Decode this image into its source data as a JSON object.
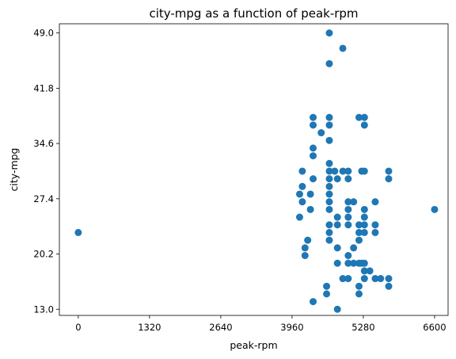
{
  "chart_data": {
    "type": "scatter",
    "title": "city-mpg as a function of peak-rpm",
    "xlabel": "peak-rpm",
    "ylabel": "city-mpg",
    "xlim": [
      -350,
      6850
    ],
    "ylim": [
      12.2,
      50.2
    ],
    "x_ticks": [
      0,
      1320,
      2640,
      3960,
      5280,
      6600
    ],
    "x_tick_labels": [
      "0",
      "1320",
      "2640",
      "3960",
      "5280",
      "6600"
    ],
    "y_ticks": [
      13.0,
      20.2,
      27.4,
      34.6,
      41.8,
      49.0
    ],
    "y_tick_labels": [
      "13.0",
      "20.2",
      "27.4",
      "34.6",
      "41.8",
      "49.0"
    ],
    "grid": false,
    "marker_color": "#1f77b4",
    "points": [
      {
        "x": 0,
        "y": 23
      },
      {
        "x": 4150,
        "y": 31
      },
      {
        "x": 4100,
        "y": 28
      },
      {
        "x": 4150,
        "y": 29
      },
      {
        "x": 4150,
        "y": 27
      },
      {
        "x": 4100,
        "y": 25
      },
      {
        "x": 4200,
        "y": 21
      },
      {
        "x": 4200,
        "y": 20
      },
      {
        "x": 4250,
        "y": 22
      },
      {
        "x": 4300,
        "y": 28
      },
      {
        "x": 4300,
        "y": 26
      },
      {
        "x": 4350,
        "y": 38
      },
      {
        "x": 4350,
        "y": 37
      },
      {
        "x": 4350,
        "y": 34
      },
      {
        "x": 4350,
        "y": 33
      },
      {
        "x": 4350,
        "y": 30
      },
      {
        "x": 4350,
        "y": 14
      },
      {
        "x": 4500,
        "y": 36
      },
      {
        "x": 4600,
        "y": 16
      },
      {
        "x": 4600,
        "y": 15
      },
      {
        "x": 4650,
        "y": 49
      },
      {
        "x": 4650,
        "y": 45
      },
      {
        "x": 4650,
        "y": 38
      },
      {
        "x": 4650,
        "y": 37
      },
      {
        "x": 4650,
        "y": 35
      },
      {
        "x": 4650,
        "y": 32
      },
      {
        "x": 4650,
        "y": 31
      },
      {
        "x": 4650,
        "y": 30
      },
      {
        "x": 4650,
        "y": 29
      },
      {
        "x": 4650,
        "y": 28
      },
      {
        "x": 4650,
        "y": 27
      },
      {
        "x": 4650,
        "y": 26
      },
      {
        "x": 4650,
        "y": 24
      },
      {
        "x": 4650,
        "y": 23
      },
      {
        "x": 4650,
        "y": 22
      },
      {
        "x": 4750,
        "y": 31
      },
      {
        "x": 4800,
        "y": 30
      },
      {
        "x": 4800,
        "y": 25
      },
      {
        "x": 4800,
        "y": 24
      },
      {
        "x": 4800,
        "y": 21
      },
      {
        "x": 4800,
        "y": 19
      },
      {
        "x": 4800,
        "y": 13
      },
      {
        "x": 4900,
        "y": 47
      },
      {
        "x": 4900,
        "y": 31
      },
      {
        "x": 4900,
        "y": 17
      },
      {
        "x": 5000,
        "y": 31
      },
      {
        "x": 5000,
        "y": 30
      },
      {
        "x": 5000,
        "y": 27
      },
      {
        "x": 5000,
        "y": 26
      },
      {
        "x": 5000,
        "y": 25
      },
      {
        "x": 5000,
        "y": 24
      },
      {
        "x": 5000,
        "y": 20
      },
      {
        "x": 5000,
        "y": 19
      },
      {
        "x": 5000,
        "y": 17
      },
      {
        "x": 5100,
        "y": 27
      },
      {
        "x": 5100,
        "y": 21
      },
      {
        "x": 5100,
        "y": 19
      },
      {
        "x": 5200,
        "y": 38
      },
      {
        "x": 5200,
        "y": 24
      },
      {
        "x": 5200,
        "y": 23
      },
      {
        "x": 5200,
        "y": 22
      },
      {
        "x": 5200,
        "y": 19
      },
      {
        "x": 5200,
        "y": 16
      },
      {
        "x": 5200,
        "y": 15
      },
      {
        "x": 5250,
        "y": 31
      },
      {
        "x": 5250,
        "y": 19
      },
      {
        "x": 5300,
        "y": 38
      },
      {
        "x": 5300,
        "y": 37
      },
      {
        "x": 5300,
        "y": 31
      },
      {
        "x": 5300,
        "y": 26
      },
      {
        "x": 5300,
        "y": 25
      },
      {
        "x": 5300,
        "y": 24
      },
      {
        "x": 5300,
        "y": 23
      },
      {
        "x": 5300,
        "y": 19
      },
      {
        "x": 5300,
        "y": 18
      },
      {
        "x": 5300,
        "y": 17
      },
      {
        "x": 5400,
        "y": 18
      },
      {
        "x": 5500,
        "y": 27
      },
      {
        "x": 5500,
        "y": 24
      },
      {
        "x": 5500,
        "y": 23
      },
      {
        "x": 5500,
        "y": 17
      },
      {
        "x": 5600,
        "y": 17
      },
      {
        "x": 5750,
        "y": 31
      },
      {
        "x": 5750,
        "y": 30
      },
      {
        "x": 5750,
        "y": 17
      },
      {
        "x": 5750,
        "y": 16
      },
      {
        "x": 6600,
        "y": 26
      }
    ]
  }
}
